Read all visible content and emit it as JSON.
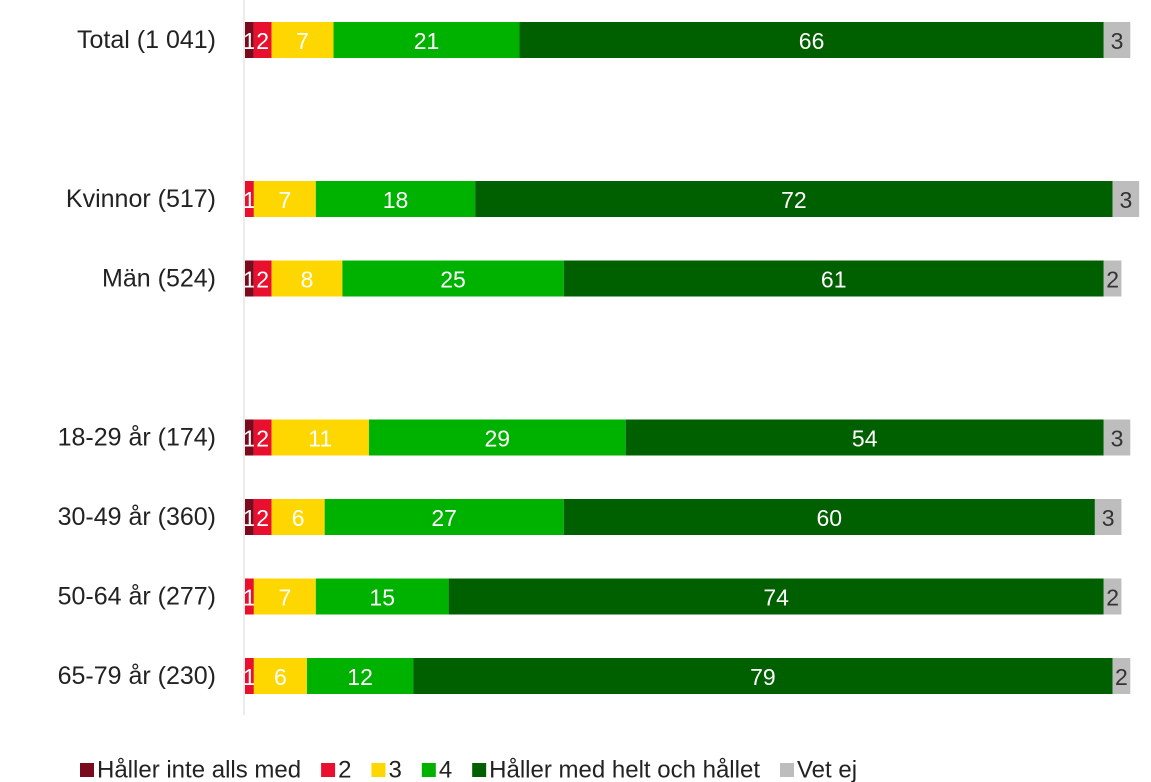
{
  "chart_data": {
    "type": "stacked_barh",
    "categories": [
      "Total (1 041)",
      null,
      "Kvinnor (517)",
      "Män (524)",
      null,
      "18-29 år (174)",
      "30-49 år (360)",
      "50-64 år (277)",
      "65-79 år (230)"
    ],
    "xlim": [
      0,
      102
    ],
    "series": [
      {
        "name": "Håller inte alls med",
        "color": "#7b0a1e",
        "values": [
          1,
          null,
          null,
          1,
          null,
          1,
          1,
          null,
          null
        ]
      },
      {
        "name": "2",
        "color": "#e8102e",
        "values": [
          2,
          null,
          1,
          2,
          null,
          2,
          2,
          1,
          1
        ]
      },
      {
        "name": "3",
        "color": "#ffd700",
        "values": [
          7,
          null,
          7,
          8,
          null,
          11,
          6,
          7,
          6
        ]
      },
      {
        "name": "4",
        "color": "#00b200",
        "values": [
          21,
          null,
          18,
          25,
          null,
          29,
          27,
          15,
          12
        ]
      },
      {
        "name": "Håller med helt och hållet",
        "color": "#006000",
        "values": [
          66,
          null,
          72,
          61,
          null,
          54,
          60,
          74,
          79
        ]
      },
      {
        "name": "Vet ej",
        "color": "#bdbdbd",
        "values": [
          3,
          null,
          3,
          2,
          null,
          3,
          3,
          2,
          2
        ]
      }
    ]
  }
}
